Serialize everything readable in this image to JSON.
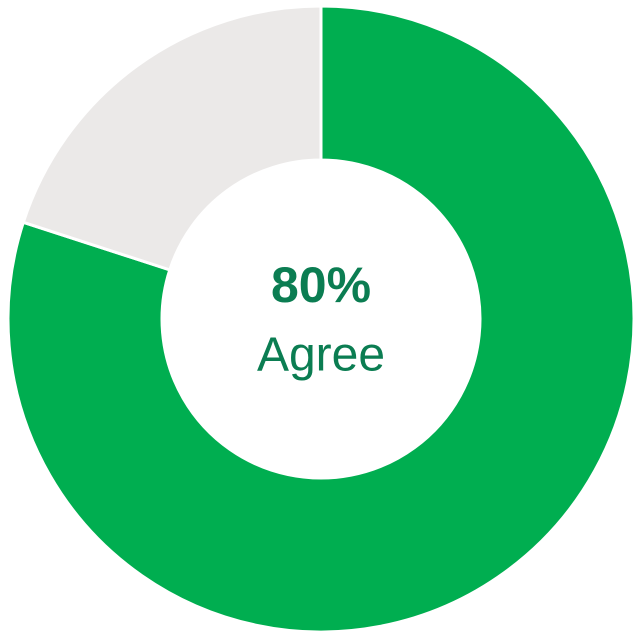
{
  "chart_data": {
    "type": "donut",
    "categories": [
      "Agree",
      null
    ],
    "values": [
      80,
      20
    ],
    "value_labels": [
      "80%",
      null
    ],
    "colors": [
      "#00ae50",
      "#ebe9e8"
    ]
  }
}
